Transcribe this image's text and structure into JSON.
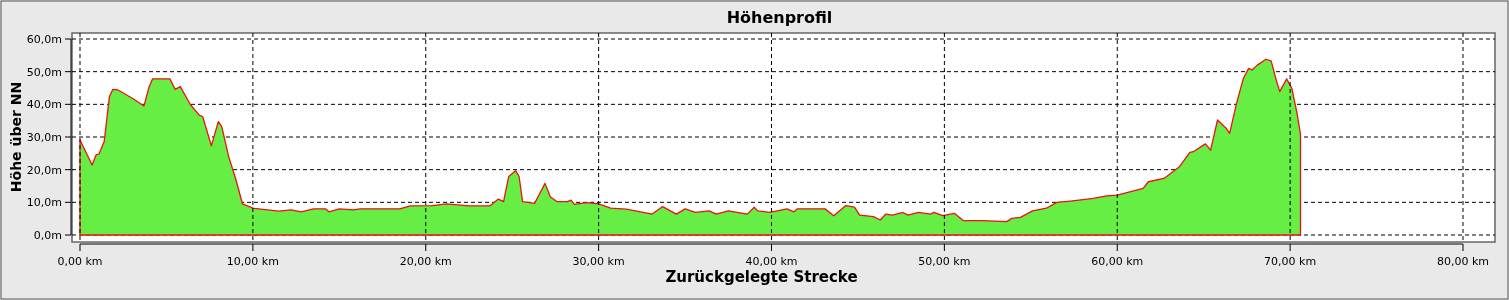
{
  "chart_data": {
    "type": "area",
    "title": "Höhenprofil",
    "xlabel": "Zurückgelegte Strecke",
    "ylabel": "Höhe über NN",
    "xlim": [
      0,
      80
    ],
    "xticks": [
      {
        "value": 0,
        "label": "0,00 km"
      },
      {
        "value": 10,
        "label": "10,00 km"
      },
      {
        "value": 20,
        "label": "20,00 km"
      },
      {
        "value": 30,
        "label": "30,00 km"
      },
      {
        "value": 40,
        "label": "40,00 km"
      },
      {
        "value": 50,
        "label": "50,00 km"
      },
      {
        "value": 60,
        "label": "60,00 km"
      },
      {
        "value": 70,
        "label": "70,00 km"
      },
      {
        "value": 80,
        "label": "80,00 km"
      }
    ],
    "ylim": [
      0,
      60
    ],
    "yticks": [
      {
        "value": 0,
        "label": "0,0m"
      },
      {
        "value": 10,
        "label": "10,0m"
      },
      {
        "value": 20,
        "label": "20,0m"
      },
      {
        "value": 30,
        "label": "30,0m"
      },
      {
        "value": 40,
        "label": "40,0m"
      },
      {
        "value": 50,
        "label": "50,0m"
      },
      {
        "value": 60,
        "label": "60,0m"
      }
    ],
    "grid": true,
    "series": [
      {
        "color": "#66ee44",
        "x": [
          0,
          0.7,
          0.93,
          1.1,
          1.4,
          1.7,
          1.9,
          2.2,
          3.05,
          3.7,
          4.0,
          4.2,
          5.2,
          5.5,
          5.8,
          6.4,
          6.9,
          7.1,
          7.6,
          8.0,
          8.2,
          8.6,
          9.0,
          9.4,
          10,
          11.5,
          12.2,
          12.8,
          13.5,
          14.2,
          14.4,
          15.0,
          15.8,
          16.2,
          18.5,
          19.1,
          20.4,
          21.2,
          22.5,
          23.7,
          24.2,
          24.5,
          24.8,
          25.2,
          25.4,
          25.6,
          26.3,
          26.9,
          27.2,
          27.6,
          28.2,
          28.4,
          28.6,
          29.3,
          30.0,
          30.7,
          31.6,
          33.1,
          33.7,
          34.5,
          35.0,
          35.6,
          36.4,
          36.8,
          37.5,
          38.6,
          39.0,
          39.2,
          39.9,
          40.9,
          41.3,
          41.5,
          43.1,
          43.6,
          44.3,
          44.8,
          45.1,
          45.9,
          46.3,
          46.6,
          47.0,
          47.6,
          47.9,
          48.5,
          49.2,
          49.4,
          49.9,
          50.6,
          51.1,
          52.2,
          53.6,
          53.9,
          54.4,
          55.1,
          55.9,
          56.5,
          57.3,
          58.6,
          59.4,
          60.0,
          61.5,
          61.8,
          62.7,
          63.6,
          64.2,
          64.4,
          65.1,
          65.4,
          65.8,
          66.3,
          66.5,
          66.9,
          67.3,
          67.6,
          67.8,
          68.1,
          68.6,
          68.9,
          69.2,
          69.4,
          69.8,
          70.1,
          70.4,
          70.6
        ],
        "values": [
          29.1,
          21.4,
          24.5,
          24.8,
          28.6,
          42.3,
          44.6,
          44.4,
          41.8,
          39.5,
          45.4,
          47.8,
          47.8,
          44.6,
          45.4,
          39.8,
          36.7,
          36.2,
          27.3,
          34.7,
          33.2,
          24,
          17.3,
          9.5,
          8.2,
          7.3,
          7.7,
          7.1,
          8.0,
          8.0,
          7.1,
          8.0,
          7.7,
          8.0,
          8.0,
          8.9,
          9.0,
          9.5,
          8.9,
          8.9,
          11.0,
          10.2,
          17.9,
          19.7,
          17.9,
          10.2,
          9.7,
          15.8,
          11.7,
          10.2,
          10.2,
          10.7,
          9.4,
          9.9,
          9.5,
          8.2,
          7.9,
          6.4,
          8.7,
          6.4,
          8.0,
          6.9,
          7.4,
          6.4,
          7.4,
          6.4,
          8.5,
          7.4,
          6.9,
          8.0,
          7.1,
          8.0,
          8.0,
          5.9,
          9.0,
          8.5,
          6.1,
          5.6,
          4.6,
          6.4,
          6.1,
          6.9,
          6.1,
          6.9,
          6.4,
          6.9,
          5.9,
          6.6,
          4.4,
          4.4,
          4.1,
          5.1,
          5.4,
          7.4,
          8.2,
          10.0,
          10.4,
          11.2,
          12.0,
          12.2,
          14.3,
          16.3,
          17.3,
          20.9,
          25.3,
          25.5,
          27.9,
          26.0,
          35.2,
          32.7,
          31.1,
          40.3,
          48.0,
          51.0,
          50.5,
          52.0,
          53.8,
          53.3,
          47.4,
          43.9,
          47.8,
          44.9,
          37.2,
          30.8
        ]
      }
    ]
  }
}
